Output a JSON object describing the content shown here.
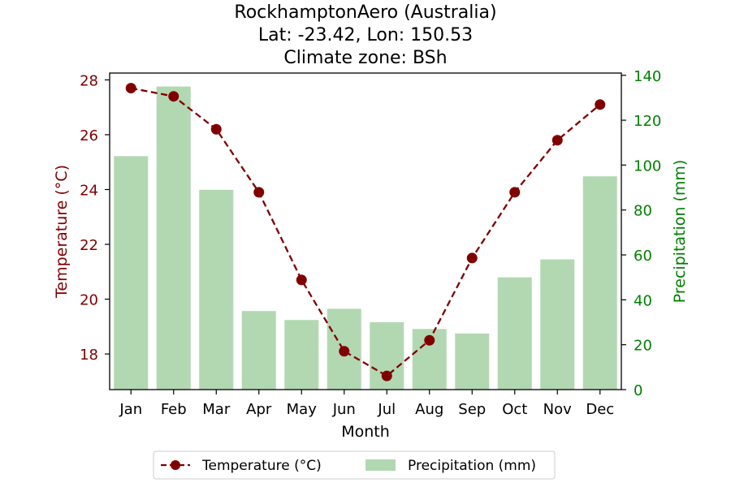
{
  "chart_data": {
    "type": "bar+line",
    "title_lines": [
      "RockhamptonAero (Australia)",
      "Lat: -23.42, Lon: 150.53",
      "Climate zone: BSh"
    ],
    "xlabel": "Month",
    "categories": [
      "Jan",
      "Feb",
      "Mar",
      "Apr",
      "May",
      "Jun",
      "Jul",
      "Aug",
      "Sep",
      "Oct",
      "Nov",
      "Dec"
    ],
    "temperature": {
      "name": "Temperature (°C)",
      "axis_label": "Temperature (°C)",
      "values": [
        27.7,
        27.4,
        26.2,
        23.9,
        20.7,
        18.1,
        17.2,
        18.5,
        21.5,
        23.9,
        25.8,
        27.1
      ],
      "ylim": [
        16.7,
        28.25
      ],
      "ticks": [
        18,
        20,
        22,
        24,
        26,
        28
      ],
      "color": "#800000"
    },
    "precipitation": {
      "name": "Precipitation (mm)",
      "axis_label": "Precipitation (mm)",
      "values": [
        104,
        135,
        89,
        35,
        31,
        36,
        30,
        27,
        25,
        50,
        58,
        95
      ],
      "ylim": [
        0,
        141
      ],
      "ticks": [
        0,
        20,
        40,
        60,
        80,
        100,
        120,
        140
      ],
      "bar_color": "#b2d8b2",
      "axis_color": "#008000"
    },
    "legend_position": "bottom-center",
    "grid": false
  }
}
